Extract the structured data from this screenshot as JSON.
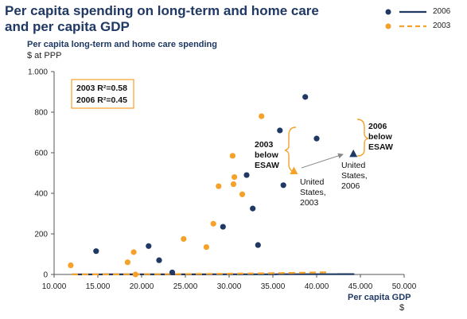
{
  "title": "Per capita spending on long-term and home care and per capita GDP",
  "legend": [
    {
      "label": "2006",
      "color": "#1f3864",
      "dash": false
    },
    {
      "label": "2003",
      "color": "#f5a12a",
      "dash": true
    }
  ],
  "r2_box": {
    "line1": "2003 R²=0.58",
    "line2": "2006 R²=0.45"
  },
  "annotations": {
    "us2003_below": [
      "2003",
      "below",
      "ESAW"
    ],
    "us2006_below": [
      "2006",
      "below",
      "ESAW"
    ],
    "us2003_label": [
      "United",
      "States,",
      "2003"
    ],
    "us2006_label": [
      "United",
      "States,",
      "2006"
    ]
  },
  "chart_data": {
    "type": "scatter",
    "ylabel": "Per capita long-term and home care spending",
    "yunit": "$ at PPP",
    "xlabel": "Per capita GDP",
    "xunit": "$",
    "xlim": [
      10000,
      50000
    ],
    "ylim": [
      0,
      1000
    ],
    "xticks": [
      10000,
      15000,
      20000,
      25000,
      30000,
      35000,
      40000,
      45000,
      50000
    ],
    "xtick_labels": [
      "10.000",
      "15.000",
      "20.000",
      "25.000",
      "30.000",
      "35.000",
      "40.000",
      "45.000",
      "50.000"
    ],
    "yticks": [
      0,
      200,
      400,
      600,
      800,
      1000
    ],
    "ytick_labels": [
      "0",
      "200",
      "400",
      "600",
      "800",
      "1.000"
    ],
    "series": [
      {
        "name": "2006",
        "color": "#1f3864",
        "points": [
          [
            14800,
            115
          ],
          [
            20800,
            140
          ],
          [
            22000,
            70
          ],
          [
            23500,
            10
          ],
          [
            29300,
            235
          ],
          [
            32000,
            490
          ],
          [
            32700,
            325
          ],
          [
            33300,
            145
          ],
          [
            35800,
            710
          ],
          [
            36200,
            440
          ],
          [
            38700,
            875
          ],
          [
            40000,
            670
          ]
        ],
        "trend": {
          "a": 1.356e-09,
          "b": 1.9465,
          "x0": 12000,
          "x1": 44300
        },
        "us_point": [
          44200,
          595
        ]
      },
      {
        "name": "2003",
        "color": "#f5a12a",
        "points": [
          [
            11900,
            45
          ],
          [
            18400,
            60
          ],
          [
            19100,
            110
          ],
          [
            19300,
            0
          ],
          [
            24800,
            175
          ],
          [
            27400,
            135
          ],
          [
            28200,
            250
          ],
          [
            28800,
            435
          ],
          [
            30400,
            585
          ],
          [
            30500,
            445
          ],
          [
            30600,
            480
          ],
          [
            31500,
            395
          ],
          [
            33700,
            780
          ]
        ],
        "trend": {
          "a": 2.08e-15,
          "b": 3.405,
          "x0": 12000,
          "x1": 41200
        },
        "us_point": [
          37400,
          510
        ]
      }
    ]
  }
}
